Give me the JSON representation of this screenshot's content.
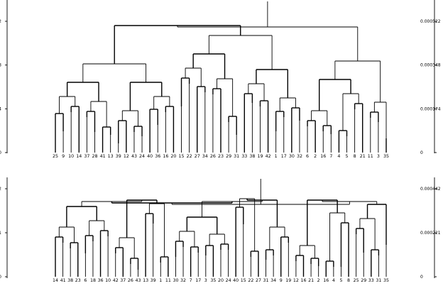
{
  "panels": [
    {
      "id": "top",
      "y_ticks": [
        "0.000522",
        "0.000348",
        "0.000174",
        "0"
      ],
      "leaves": [
        "25",
        "9",
        "10",
        "14",
        "37",
        "28",
        "41",
        "13",
        "39",
        "12",
        "43",
        "24",
        "40",
        "36",
        "16",
        "20",
        "15",
        "22",
        "27",
        "34",
        "26",
        "23",
        "29",
        "31",
        "33",
        "38",
        "19",
        "42",
        "1",
        "17",
        "30",
        "32",
        "6",
        "2",
        "16",
        "7",
        "4",
        "5",
        "8",
        "21",
        "11",
        "3",
        "35"
      ]
    },
    {
      "id": "bottom",
      "y_ticks": [
        "0.000442",
        "0.000221",
        "0"
      ],
      "leaves": [
        "14",
        "41",
        "38",
        "23",
        "6",
        "18",
        "36",
        "10",
        "42",
        "37",
        "26",
        "43",
        "13",
        "39",
        "1",
        "11",
        "30",
        "32",
        "7",
        "17",
        "3",
        "35",
        "20",
        "24",
        "40",
        "15",
        "22",
        "27",
        "31",
        "34",
        "9",
        "19",
        "12",
        "16",
        "21",
        "2",
        "16",
        "4",
        "5",
        "8",
        "25",
        "29",
        "33",
        "31",
        "35"
      ]
    }
  ]
}
